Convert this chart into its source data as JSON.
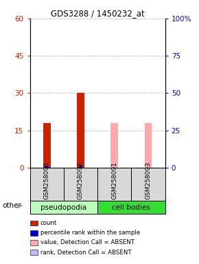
{
  "title": "GDS3288 / 1450232_at",
  "samples": [
    "GSM258090",
    "GSM258092",
    "GSM258091",
    "GSM258093"
  ],
  "groups": [
    "pseudopodia",
    "pseudopodia",
    "cell bodies",
    "cell bodies"
  ],
  "group_colors": {
    "pseudopodia": "#bbffbb",
    "cell bodies": "#33dd33"
  },
  "bar_positions": [
    0,
    1,
    2,
    3
  ],
  "count_values": [
    18,
    30,
    0,
    0
  ],
  "rank_values": [
    0.8,
    1.5,
    0,
    0
  ],
  "absent_value_values": [
    0,
    0,
    18,
    18
  ],
  "absent_rank_values": [
    0,
    0,
    0.4,
    0.4
  ],
  "count_color": "#cc2200",
  "rank_color": "#0000cc",
  "absent_value_color": "#ffaaaa",
  "absent_rank_color": "#bbbbff",
  "ylim_left": [
    0,
    60
  ],
  "ylim_right": [
    0,
    100
  ],
  "yticks_left": [
    0,
    15,
    30,
    45,
    60
  ],
  "yticks_right": [
    0,
    25,
    50,
    75,
    100
  ],
  "legend_items": [
    {
      "label": "count",
      "color": "#cc2200"
    },
    {
      "label": "percentile rank within the sample",
      "color": "#0000cc"
    },
    {
      "label": "value, Detection Call = ABSENT",
      "color": "#ffaaaa"
    },
    {
      "label": "rank, Detection Call = ABSENT",
      "color": "#bbbbff"
    }
  ]
}
